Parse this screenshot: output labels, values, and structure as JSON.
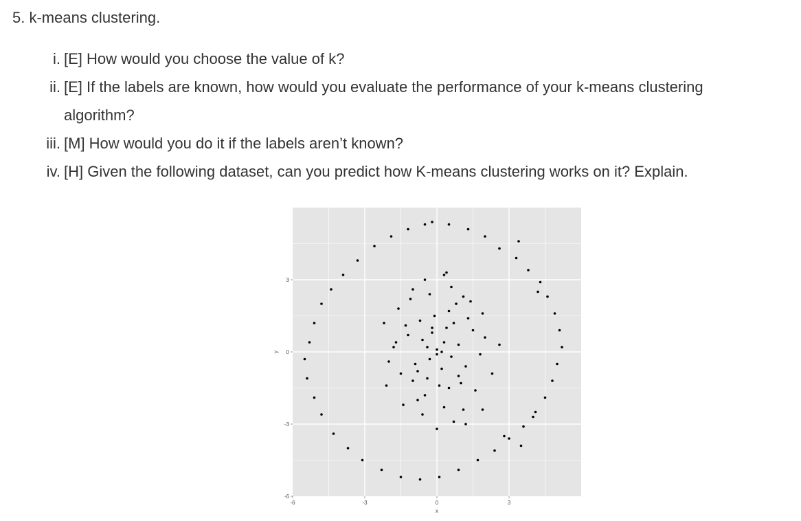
{
  "heading": "5. k-means clustering.",
  "questions": [
    {
      "num": "i.",
      "text": "[E] How would you choose the value of k?"
    },
    {
      "num": "ii.",
      "text": "[E] If the labels are known, how would you evaluate the performance of your k-means clustering",
      "text2": "algorithm?"
    },
    {
      "num": "iii.",
      "text": "[M] How would you do it if the labels aren’t known?"
    },
    {
      "num": "iv.",
      "text": "[H] Given the following dataset, can you predict how K-means clustering works on it? Explain."
    }
  ],
  "chart_data": {
    "type": "scatter",
    "title": "",
    "xlabel": "x",
    "ylabel": "y",
    "xlim": [
      -6,
      6
    ],
    "ylim": [
      -6,
      6
    ],
    "x_ticks": [
      "-6",
      "-3",
      "0",
      "3"
    ],
    "y_ticks": [
      "-6",
      "-3",
      "0",
      "3"
    ],
    "grid": true,
    "colors": {
      "panel": "#e5e5e5",
      "grid": "#ffffff",
      "point": "#000000"
    },
    "series": [
      {
        "x": [
          -0.2,
          0.5,
          1.3,
          2.0,
          2.6,
          3.3,
          3.8,
          4.3,
          4.6,
          4.9,
          5.1,
          5.2,
          5.0,
          4.8,
          4.5,
          4.1,
          3.6,
          3.0,
          2.4,
          1.7,
          0.9,
          0.1,
          -0.7,
          -1.5,
          -2.3,
          -3.1,
          -3.7,
          -4.3,
          -4.8,
          -5.1,
          -5.4,
          -5.5,
          -5.3,
          -5.1,
          -4.8,
          -4.4,
          -3.9,
          -3.3,
          -2.6,
          -1.9,
          -1.2,
          -0.5,
          0.3,
          1.1,
          1.9,
          2.8,
          3.5,
          4.0,
          4.2,
          3.4
        ],
        "y": [
          5.4,
          5.3,
          5.1,
          4.8,
          4.3,
          3.9,
          3.4,
          2.9,
          2.3,
          1.6,
          0.9,
          0.2,
          -0.5,
          -1.2,
          -1.9,
          -2.5,
          -3.1,
          -3.6,
          -4.1,
          -4.5,
          -4.9,
          -5.2,
          -5.3,
          -5.2,
          -4.9,
          -4.5,
          -4.0,
          -3.4,
          -2.6,
          -1.9,
          -1.1,
          -0.3,
          0.4,
          1.2,
          2.0,
          2.6,
          3.2,
          3.8,
          4.4,
          4.8,
          5.1,
          5.3,
          3.2,
          2.3,
          -2.4,
          -3.5,
          -3.9,
          -2.7,
          2.5,
          4.6
        ]
      },
      {
        "x": [
          0.0,
          0.3,
          -0.3,
          0.6,
          -0.6,
          0.2,
          -0.2,
          0.9,
          -0.9,
          0.4,
          -0.4,
          1.2,
          -1.2,
          0.7,
          -0.7,
          0.1,
          -0.1,
          1.5,
          -1.5,
          1.0,
          -1.0,
          0.5,
          -0.5,
          1.8,
          -1.8,
          0.8,
          -0.8,
          1.3,
          -1.3,
          0.3,
          -0.3,
          2.0,
          -2.0,
          1.6,
          -1.6,
          0.6,
          -0.6,
          2.3,
          -2.2,
          1.1,
          -1.1,
          0.0,
          0.2,
          -0.4,
          0.9,
          -0.8,
          1.4,
          -1.4,
          0.5,
          -0.2,
          2.6,
          -2.1,
          1.9,
          -1.7,
          0.7,
          -0.5,
          1.2,
          -1.0,
          0.4,
          0.0
        ],
        "y": [
          0.1,
          0.4,
          -0.3,
          -0.2,
          0.5,
          -0.7,
          0.8,
          0.3,
          -0.5,
          1.0,
          -1.1,
          -0.6,
          0.7,
          1.2,
          1.3,
          -1.4,
          1.5,
          0.9,
          -0.9,
          -1.3,
          -1.2,
          1.7,
          -1.8,
          -0.1,
          0.2,
          2.0,
          -2.0,
          1.4,
          1.1,
          -2.3,
          2.4,
          0.6,
          -0.4,
          -1.6,
          1.8,
          2.7,
          -2.6,
          -0.9,
          1.2,
          -2.4,
          2.2,
          -0.1,
          0.0,
          0.2,
          -1.0,
          -0.8,
          2.1,
          -2.2,
          -1.5,
          1.0,
          0.3,
          -1.4,
          1.6,
          0.4,
          -2.9,
          3.0,
          -3.0,
          2.6,
          3.3,
          -3.2
        ]
      }
    ]
  }
}
